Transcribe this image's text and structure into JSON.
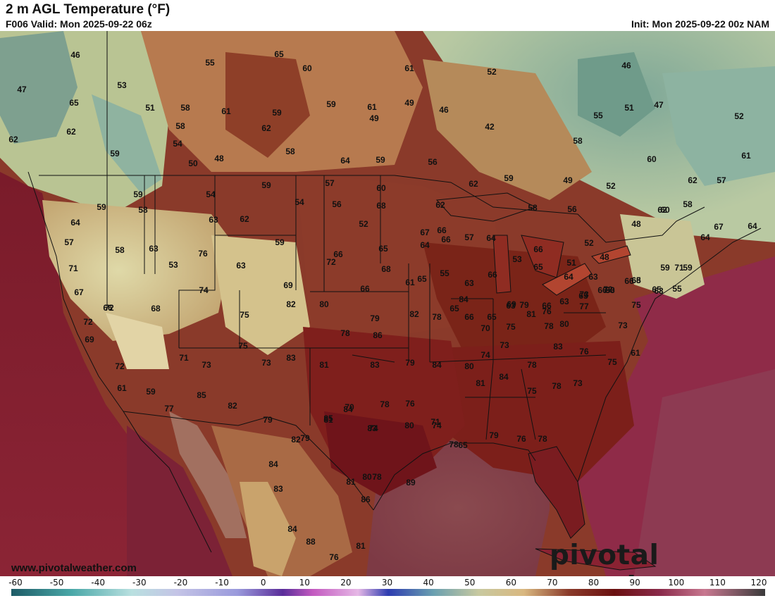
{
  "header": {
    "title": "2 m AGL Temperature (°F)",
    "valid": "F006 Valid: Mon 2025-09-22 06z",
    "init": "Init: Mon 2025-09-22 00z NAM"
  },
  "footer": {
    "website": "www.pivotalweather.com",
    "brand": "pivotal weather"
  },
  "legend": {
    "ticks": [
      "-60",
      "-50",
      "-40",
      "-30",
      "-20",
      "-10",
      "0",
      "10",
      "20",
      "30",
      "40",
      "50",
      "60",
      "70",
      "80",
      "90",
      "100",
      "110",
      "120"
    ]
  },
  "map_labels": [
    "46",
    "55",
    "65",
    "60",
    "61",
    "52",
    "46",
    "47",
    "53",
    "51",
    "58",
    "61",
    "59",
    "59",
    "61",
    "49",
    "46",
    "55",
    "47",
    "65",
    "58",
    "62",
    "49",
    "42",
    "51",
    "52",
    "62",
    "54",
    "58",
    "59",
    "64",
    "59",
    "56",
    "58",
    "60",
    "61",
    "62",
    "50",
    "48",
    "57",
    "60",
    "62",
    "59",
    "49",
    "52",
    "62",
    "57",
    "59",
    "54",
    "56",
    "68",
    "62",
    "58",
    "60",
    "58",
    "59",
    "54",
    "59",
    "52",
    "67",
    "56",
    "48",
    "62",
    "67",
    "64",
    "64",
    "58",
    "63",
    "62",
    "66",
    "57",
    "64",
    "53",
    "66",
    "51",
    "52",
    "48",
    "57",
    "63",
    "66",
    "65",
    "58",
    "59",
    "76",
    "53",
    "64",
    "66",
    "65",
    "64",
    "63",
    "66",
    "66",
    "59",
    "59",
    "55",
    "63",
    "64",
    "71",
    "63",
    "72",
    "68",
    "61",
    "65",
    "55",
    "63",
    "66",
    "63",
    "66",
    "65",
    "53",
    "65",
    "65",
    "71",
    "67",
    "72",
    "68",
    "74",
    "69",
    "66",
    "65",
    "66",
    "70",
    "69",
    "79",
    "76",
    "63",
    "73",
    "90",
    "68",
    "72",
    "66",
    "75",
    "82",
    "80",
    "78",
    "79",
    "86",
    "82",
    "78",
    "84",
    "65",
    "75",
    "81",
    "78",
    "80",
    "77",
    "72",
    "73",
    "75",
    "69",
    "72",
    "71",
    "73",
    "75",
    "73",
    "83",
    "81",
    "83",
    "79",
    "84",
    "80",
    "74",
    "73",
    "78",
    "83",
    "76",
    "75",
    "61",
    "61",
    "59",
    "77",
    "85",
    "82",
    "79",
    "82",
    "85",
    "84",
    "83",
    "78",
    "76",
    "74",
    "78",
    "81",
    "84",
    "75",
    "78",
    "73",
    "78",
    "76",
    "79",
    "65",
    "71",
    "80",
    "74",
    "70",
    "81",
    "79",
    "84",
    "83",
    "84",
    "88",
    "76",
    "81",
    "86",
    "81",
    "80",
    "78",
    "89"
  ]
}
